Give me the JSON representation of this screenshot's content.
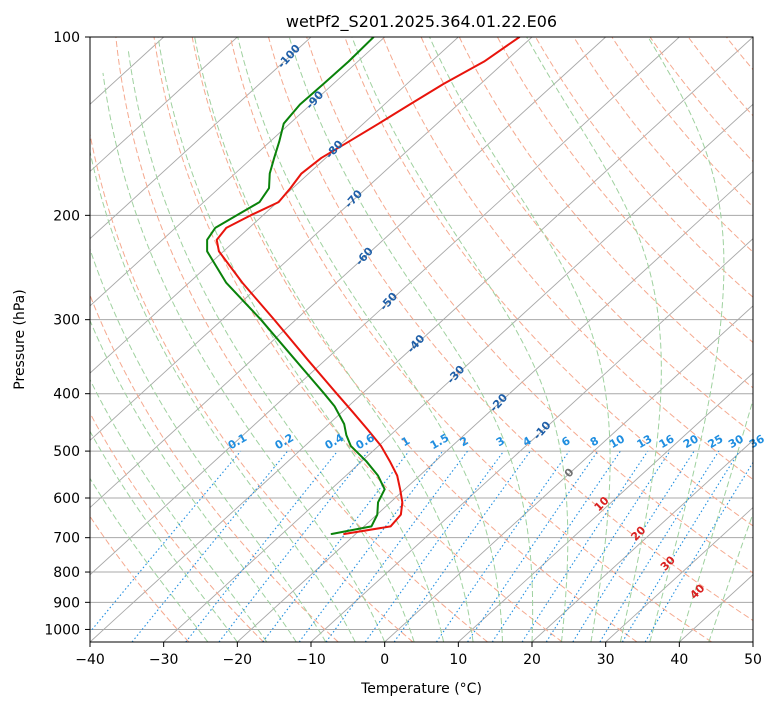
{
  "chart_data": {
    "type": "line",
    "subtype": "skew-t log-p diagram",
    "title": "wetPf2_S201.2025.364.01.22.E06",
    "xlabel": "Temperature (°C)",
    "ylabel": "Pressure (hPa)",
    "xlim": [
      -40,
      50
    ],
    "ylim": [
      1050,
      100
    ],
    "x_ticks": [
      -40,
      -30,
      -20,
      -10,
      0,
      10,
      20,
      30,
      40,
      50
    ],
    "y_ticks": [
      100,
      200,
      300,
      400,
      500,
      600,
      700,
      800,
      900,
      1000
    ],
    "grid": true,
    "colors": {
      "temperature": "#e8140c",
      "dewpoint": "#0a820a",
      "isotherm": "#a8a8a8",
      "dry_adiabat": "#f5a98f",
      "moist_adiabat": "#9fd19f",
      "mixing_ratio": "#1f8ee0",
      "temp_label": "#1f5fa8",
      "moist_label": "#d92020",
      "zero_label": "#707070"
    },
    "series": [
      {
        "name": "Temperature",
        "pressure": [
          690,
          670,
          640,
          610,
          580,
          550,
          520,
          490,
          460,
          430,
          400,
          350,
          300,
          260,
          230,
          220,
          210,
          200,
          190,
          180,
          170,
          160,
          150,
          140,
          130,
          120,
          110,
          100
        ],
        "values": [
          -5.5,
          0.8,
          2.2,
          2.4,
          2.1,
          1.7,
          0.7,
          -0.5,
          -2.3,
          -4.3,
          -6.5,
          -10.5,
          -15.0,
          -19.3,
          -22.5,
          -22.8,
          -21.5,
          -18.2,
          -14.4,
          -12.8,
          -11.3,
          -8.6,
          -4.8,
          -0.8,
          3.4,
          8.0,
          13.5,
          18.3
        ]
      },
      {
        "name": "Dewpoint",
        "pressure": [
          690,
          670,
          640,
          610,
          580,
          550,
          520,
          490,
          470,
          450,
          420,
          400,
          350,
          300,
          260,
          230,
          220,
          210,
          200,
          190,
          180,
          170,
          160,
          150,
          140,
          130,
          120,
          110,
          100
        ],
        "values": [
          -7.2,
          -1.8,
          -1.0,
          -0.9,
          0.0,
          -0.9,
          -2.5,
          -4.6,
          -5.2,
          -5.5,
          -6.8,
          -8.2,
          -12.2,
          -16.8,
          -21.5,
          -24.1,
          -24.1,
          -23.0,
          -20.1,
          -17.0,
          -15.7,
          -15.6,
          -15.0,
          -14.3,
          -13.7,
          -11.5,
          -8.3,
          -4.9,
          -1.5
        ]
      }
    ],
    "isotherm_labels": [
      "-100",
      "-90",
      "-80",
      "-70",
      "-60",
      "-50",
      "-40",
      "-30",
      "-20",
      "-10",
      "0"
    ],
    "mixing_ratio_labels": [
      "0.1",
      "0.2",
      "0.4",
      "0.6",
      "1",
      "1.5",
      "2",
      "3",
      "4",
      "6",
      "8",
      "10",
      "13",
      "16",
      "20",
      "25",
      "30",
      "36"
    ],
    "moist_adiabat_labels": [
      "10",
      "20",
      "30",
      "40"
    ]
  }
}
